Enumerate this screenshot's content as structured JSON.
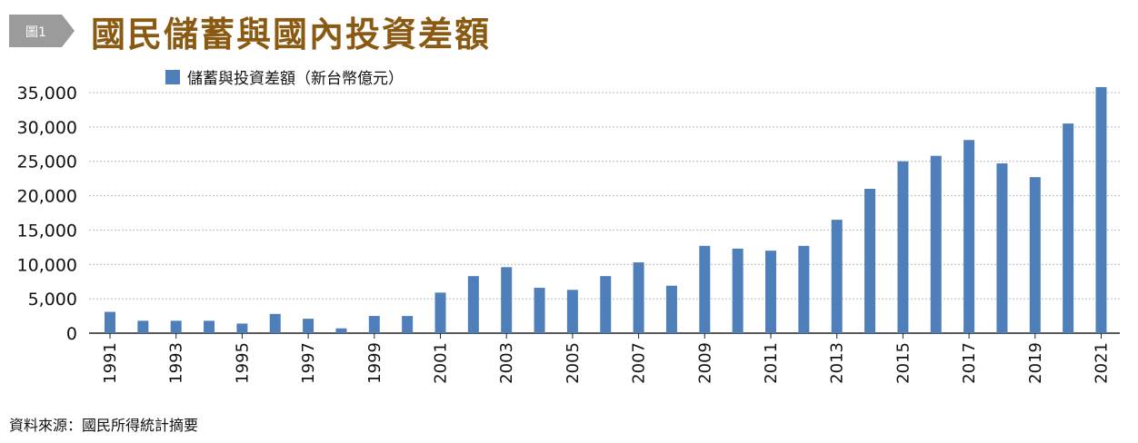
{
  "header": {
    "badge": "圖1",
    "title": "國民儲蓄與國內投資差額"
  },
  "source": "資料來源：國民所得統計摘要",
  "colors": {
    "bar": "#4f7fbb",
    "title": "#8a5a12",
    "badge": "#9b9b9b",
    "grid": "#bbbbbb"
  },
  "chart_data": {
    "type": "bar",
    "categories": [
      "1991",
      "1992",
      "1993",
      "1994",
      "1995",
      "1996",
      "1997",
      "1998",
      "1999",
      "2000",
      "2001",
      "2002",
      "2003",
      "2004",
      "2005",
      "2006",
      "2007",
      "2008",
      "2009",
      "2010",
      "2011",
      "2012",
      "2013",
      "2014",
      "2015",
      "2016",
      "2017",
      "2018",
      "2019",
      "2020",
      "2021"
    ],
    "x_tick_labels": [
      "1991",
      "1993",
      "1995",
      "1997",
      "1999",
      "2001",
      "2003",
      "2005",
      "2007",
      "2009",
      "2011",
      "2013",
      "2015",
      "2017",
      "2019",
      "2021"
    ],
    "series": [
      {
        "name": "儲蓄與投資差額（新台幣億元）",
        "values": [
          3100,
          1800,
          1800,
          1800,
          1400,
          2800,
          2100,
          700,
          2500,
          2500,
          5900,
          8300,
          9600,
          6600,
          6300,
          8300,
          10300,
          6900,
          12700,
          12300,
          12000,
          12700,
          16500,
          21000,
          25000,
          25800,
          28100,
          24700,
          22700,
          30500,
          35800
        ]
      }
    ],
    "y_ticks": [
      "0",
      "5,000",
      "10,000",
      "15,000",
      "20,000",
      "25,000",
      "30,000",
      "35,000"
    ],
    "y_tick_values": [
      0,
      5000,
      10000,
      15000,
      20000,
      25000,
      30000,
      35000
    ],
    "ylim": [
      0,
      35000
    ],
    "grid": true,
    "legend_position": "top-left"
  }
}
